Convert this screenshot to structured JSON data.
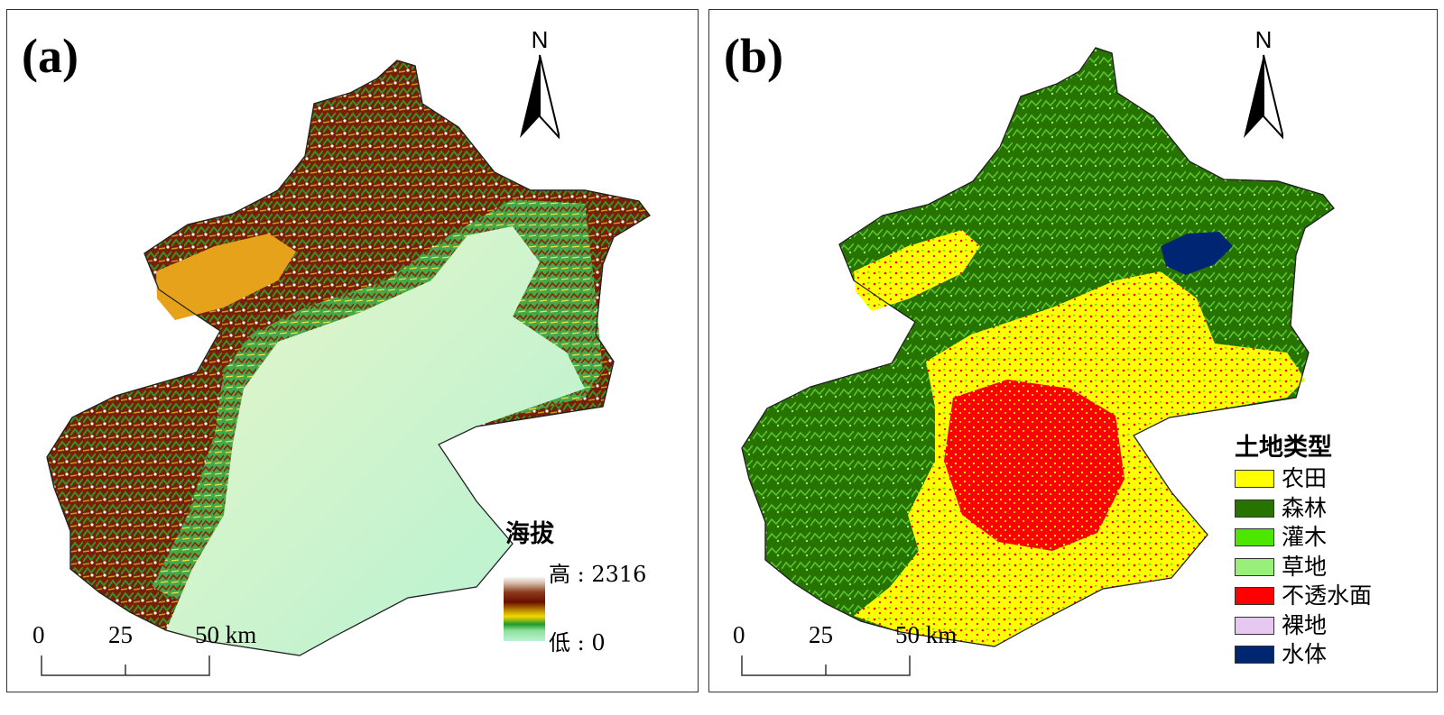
{
  "panel_a": {
    "label": "(a)",
    "north_letter": "N",
    "scale": {
      "ticks": [
        "0",
        "25",
        "50 km"
      ]
    },
    "legend": {
      "title": "海拔",
      "high_label": "高 : 2316",
      "low_label": "低 : 0",
      "max_value": 2316,
      "min_value": 0
    }
  },
  "panel_b": {
    "label": "(b)",
    "north_letter": "N",
    "scale": {
      "ticks": [
        "0",
        "25",
        "50 km"
      ]
    },
    "legend": {
      "title": "土地类型",
      "items": [
        {
          "label": "农田",
          "color": "#ffff00"
        },
        {
          "label": "森林",
          "color": "#267300"
        },
        {
          "label": "灌木",
          "color": "#4ce600"
        },
        {
          "label": "草地",
          "color": "#98f07a"
        },
        {
          "label": "不透水面",
          "color": "#ff0000"
        },
        {
          "label": "裸地",
          "color": "#e6c8f0"
        },
        {
          "label": "水体",
          "color": "#002673"
        }
      ]
    }
  }
}
